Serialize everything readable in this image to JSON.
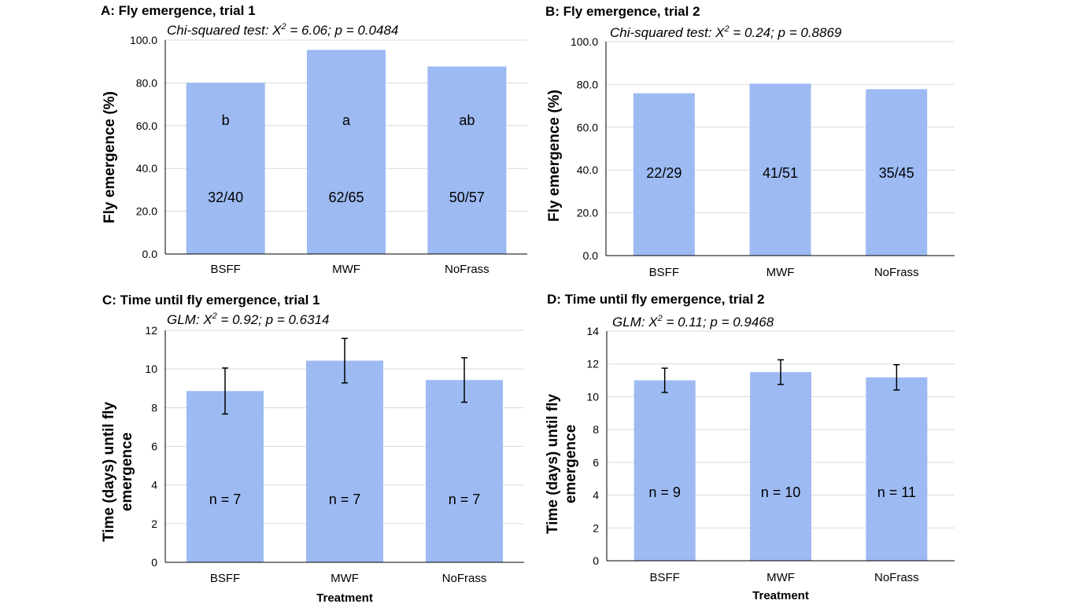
{
  "chart_data": [
    {
      "type": "bar",
      "panel_title": "A: Fly emergence, trial 1",
      "stat_test": {
        "pre": "Chi-squared test: X",
        "sup": "2",
        "post": " = 6.06; p = 0.0484"
      },
      "ylabel": "Fly emergence (%)",
      "xlabel": "",
      "ylim": [
        0,
        100
      ],
      "yticks": [
        "0.0",
        "20.0",
        "40.0",
        "60.0",
        "80.0",
        "100.0"
      ],
      "categories": [
        "BSFF",
        "MWF",
        "NoFrass"
      ],
      "values": [
        80.0,
        95.4,
        87.7
      ],
      "count_labels": [
        "32/40",
        "62/65",
        "50/57"
      ],
      "letters": [
        "b",
        "a",
        "ab"
      ],
      "bar_color": "#9dbaf2",
      "grid": true
    },
    {
      "type": "bar",
      "panel_title": "B: Fly emergence, trial 2",
      "stat_test": {
        "pre": "Chi-squared test: X",
        "sup": "2",
        "post": " = 0.24; p = 0.8869"
      },
      "ylabel": "Fly emergence (%)",
      "xlabel": "",
      "ylim": [
        0,
        100
      ],
      "yticks": [
        "0.0",
        "20.0",
        "40.0",
        "60.0",
        "80.0",
        "100.0"
      ],
      "categories": [
        "BSFF",
        "MWF",
        "NoFrass"
      ],
      "values": [
        75.9,
        80.4,
        77.8
      ],
      "count_labels": [
        "22/29",
        "41/51",
        "35/45"
      ],
      "bar_color": "#9dbaf2",
      "grid": true
    },
    {
      "type": "bar",
      "panel_title": "C: Time until fly emergence, trial 1",
      "stat_test": {
        "pre": "GLM: X",
        "sup": "2",
        "post": " = 0.92; p = 0.6314"
      },
      "ylabel": "Time (days) until fly emergence",
      "xlabel": "Treatment",
      "ylim": [
        0,
        12
      ],
      "yticks": [
        "0",
        "2",
        "4",
        "6",
        "8",
        "10",
        "12"
      ],
      "categories": [
        "BSFF",
        "MWF",
        "NoFrass"
      ],
      "values": [
        8.86,
        10.43,
        9.43
      ],
      "errors": [
        1.19,
        1.15,
        1.15
      ],
      "count_labels": [
        "n = 7",
        "n = 7",
        "n = 7"
      ],
      "bar_color": "#9dbaf2",
      "grid": true
    },
    {
      "type": "bar",
      "panel_title": "D: Time until fly emergence, trial 2",
      "stat_test": {
        "pre": "GLM: X",
        "sup": "2",
        "post": " = 0.11; p = 0.9468"
      },
      "ylabel": "Time (days) until fly emergence",
      "xlabel": "Treatment",
      "ylim": [
        0,
        14
      ],
      "yticks": [
        "0",
        "2",
        "4",
        "6",
        "8",
        "10",
        "12",
        "14"
      ],
      "categories": [
        "BSFF",
        "MWF",
        "NoFrass"
      ],
      "values": [
        11.0,
        11.5,
        11.18
      ],
      "errors": [
        0.74,
        0.75,
        0.77
      ],
      "count_labels": [
        "n = 9",
        "n = 10",
        "n = 11"
      ],
      "bar_color": "#9dbaf2",
      "grid": true
    }
  ]
}
